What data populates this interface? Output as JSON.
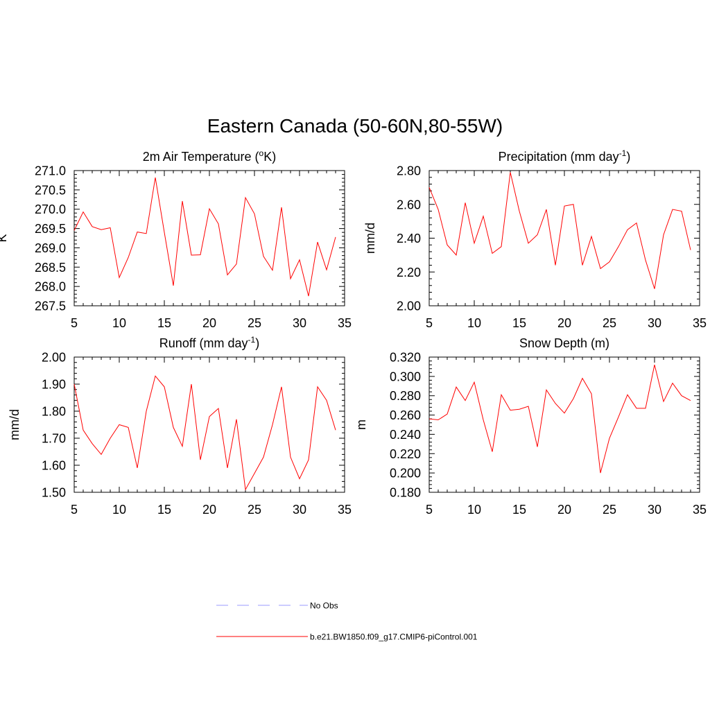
{
  "figure": {
    "title": "Eastern Canada (50-60N,80-55W)"
  },
  "chart_data": [
    {
      "type": "line",
      "title_main": "2m Air Temperature (",
      "title_sup": "o",
      "title_tail": "K)",
      "ylabel": "K",
      "xlim": [
        5,
        35
      ],
      "ylim": [
        267.5,
        271.0
      ],
      "xticks": [
        5,
        10,
        15,
        20,
        25,
        30,
        35
      ],
      "yticks": [
        267.5,
        268.0,
        268.5,
        269.0,
        269.5,
        270.0,
        270.5,
        271.0
      ],
      "yticks_labels": [
        "267.5",
        "268.0",
        "268.5",
        "269.0",
        "269.5",
        "270.0",
        "270.5",
        "271.0"
      ],
      "series": [
        {
          "name": "b.e21.BW1850.f09_g17.CMIP6-piControl.001",
          "color": "#ff0000",
          "x": [
            5,
            6,
            7,
            8,
            9,
            10,
            11,
            12,
            13,
            14,
            15,
            16,
            17,
            18,
            19,
            20,
            21,
            22,
            23,
            24,
            25,
            26,
            27,
            28,
            29,
            30,
            31,
            32,
            33,
            34
          ],
          "values": [
            269.45,
            269.93,
            269.55,
            269.47,
            269.52,
            268.23,
            268.75,
            269.41,
            269.37,
            270.82,
            269.4,
            268.02,
            270.21,
            268.81,
            268.82,
            270.01,
            269.62,
            268.3,
            268.58,
            270.3,
            269.88,
            268.78,
            268.42,
            270.05,
            268.2,
            268.69,
            267.75,
            269.15,
            268.43,
            269.28
          ]
        }
      ]
    },
    {
      "type": "line",
      "title_main": "Precipitation (mm day",
      "title_sup": "-1",
      "title_tail": ")",
      "ylabel": "mm/d",
      "xlim": [
        5,
        35
      ],
      "ylim": [
        2.0,
        2.8
      ],
      "xticks": [
        5,
        10,
        15,
        20,
        25,
        30,
        35
      ],
      "yticks": [
        2.0,
        2.2,
        2.4,
        2.6,
        2.8
      ],
      "yticks_labels": [
        "2.00",
        "2.20",
        "2.40",
        "2.60",
        "2.80"
      ],
      "series": [
        {
          "name": "b.e21.BW1850.f09_g17.CMIP6-piControl.001",
          "color": "#ff0000",
          "x": [
            5,
            6,
            7,
            8,
            9,
            10,
            11,
            12,
            13,
            14,
            15,
            16,
            17,
            18,
            19,
            20,
            21,
            22,
            23,
            24,
            25,
            26,
            27,
            28,
            29,
            30,
            31,
            32,
            33,
            34
          ],
          "values": [
            2.7,
            2.57,
            2.36,
            2.3,
            2.61,
            2.37,
            2.53,
            2.31,
            2.35,
            2.79,
            2.56,
            2.37,
            2.42,
            2.57,
            2.24,
            2.59,
            2.6,
            2.24,
            2.41,
            2.22,
            2.26,
            2.35,
            2.45,
            2.49,
            2.27,
            2.1,
            2.42,
            2.57,
            2.56,
            2.33
          ]
        }
      ]
    },
    {
      "type": "line",
      "title_main": "Runoff (mm day",
      "title_sup": "-1",
      "title_tail": ")",
      "ylabel": "mm/d",
      "xlim": [
        5,
        35
      ],
      "ylim": [
        1.5,
        2.0
      ],
      "xticks": [
        5,
        10,
        15,
        20,
        25,
        30,
        35
      ],
      "yticks": [
        1.5,
        1.6,
        1.7,
        1.8,
        1.9,
        2.0
      ],
      "yticks_labels": [
        "1.50",
        "1.60",
        "1.70",
        "1.80",
        "1.90",
        "2.00"
      ],
      "series": [
        {
          "name": "b.e21.BW1850.f09_g17.CMIP6-piControl.001",
          "color": "#ff0000",
          "x": [
            5,
            6,
            7,
            8,
            9,
            10,
            11,
            12,
            13,
            14,
            15,
            16,
            17,
            18,
            19,
            20,
            21,
            22,
            23,
            24,
            25,
            26,
            27,
            28,
            29,
            30,
            31,
            32,
            33,
            34
          ],
          "values": [
            1.9,
            1.73,
            1.68,
            1.64,
            1.7,
            1.75,
            1.74,
            1.59,
            1.8,
            1.93,
            1.89,
            1.74,
            1.67,
            1.9,
            1.62,
            1.78,
            1.81,
            1.59,
            1.77,
            1.51,
            1.57,
            1.63,
            1.75,
            1.89,
            1.63,
            1.55,
            1.62,
            1.89,
            1.84,
            1.73
          ]
        }
      ]
    },
    {
      "type": "line",
      "title_main": "Snow Depth (m)",
      "title_sup": "",
      "title_tail": "",
      "ylabel": "m",
      "xlim": [
        5,
        35
      ],
      "ylim": [
        0.18,
        0.32
      ],
      "xticks": [
        5,
        10,
        15,
        20,
        25,
        30,
        35
      ],
      "yticks": [
        0.18,
        0.2,
        0.22,
        0.24,
        0.26,
        0.28,
        0.3,
        0.32
      ],
      "yticks_labels": [
        "0.180",
        "0.200",
        "0.220",
        "0.240",
        "0.260",
        "0.280",
        "0.300",
        "0.320"
      ],
      "series": [
        {
          "name": "b.e21.BW1850.f09_g17.CMIP6-piControl.001",
          "color": "#ff0000",
          "x": [
            5,
            6,
            7,
            8,
            9,
            10,
            11,
            12,
            13,
            14,
            15,
            16,
            17,
            18,
            19,
            20,
            21,
            22,
            23,
            24,
            25,
            26,
            27,
            28,
            29,
            30,
            31,
            32,
            33,
            34
          ],
          "values": [
            0.256,
            0.255,
            0.261,
            0.289,
            0.275,
            0.294,
            0.255,
            0.222,
            0.281,
            0.265,
            0.266,
            0.269,
            0.227,
            0.286,
            0.272,
            0.262,
            0.277,
            0.298,
            0.282,
            0.2,
            0.236,
            0.258,
            0.281,
            0.267,
            0.267,
            0.312,
            0.274,
            0.293,
            0.28,
            0.275
          ]
        }
      ]
    }
  ],
  "legend": {
    "items": [
      {
        "label": "No Obs",
        "color": "#9999ff",
        "style": "dashed"
      },
      {
        "label": "b.e21.BW1850.f09_g17.CMIP6-piControl.001",
        "color": "#ff0000",
        "style": "solid"
      }
    ]
  }
}
